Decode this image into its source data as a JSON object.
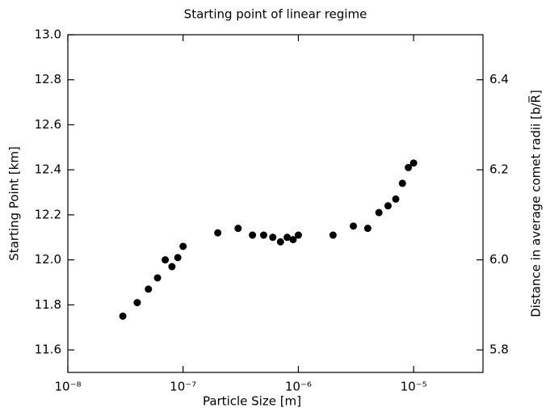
{
  "chart_data": {
    "type": "scatter",
    "title": "Starting point of linear regime",
    "x_label": "Particle Size [m]",
    "y_label": "Starting Point [km]",
    "y2_label": "Distance in average comet radii [b/R̅]",
    "xscale": "log",
    "color": "#000000",
    "x": [
      3e-08,
      4e-08,
      5e-08,
      6e-08,
      7e-08,
      8e-08,
      9e-08,
      1e-07,
      2e-07,
      3e-07,
      4e-07,
      5e-07,
      6e-07,
      7e-07,
      8e-07,
      9e-07,
      1e-06,
      2e-06,
      3e-06,
      4e-06,
      5e-06,
      6e-06,
      7e-06,
      8e-06,
      9e-06,
      1e-05
    ],
    "values": [
      11.75,
      11.81,
      11.87,
      11.92,
      12.0,
      11.97,
      12.01,
      12.06,
      12.12,
      12.14,
      12.11,
      12.11,
      12.1,
      12.08,
      12.1,
      12.09,
      12.11,
      12.11,
      12.15,
      12.14,
      12.21,
      12.24,
      12.27,
      12.34,
      12.41,
      12.43
    ],
    "xlim": [
      1e-08,
      4e-05
    ],
    "xticks": [
      {
        "value": 1e-08,
        "label": "10⁻⁸"
      },
      {
        "value": 1e-07,
        "label": "10⁻⁷"
      },
      {
        "value": 1e-06,
        "label": "10⁻⁶"
      },
      {
        "value": 1e-05,
        "label": "10⁻⁵"
      }
    ],
    "ylim": [
      11.5,
      13
    ],
    "yticks": [
      11.6,
      11.8,
      {
        "value": 12,
        "label": "12.0"
      },
      12.2,
      12.4,
      12.6,
      12.8,
      {
        "value": 13,
        "label": "13.0"
      }
    ],
    "y2lim": [
      5.75,
      6.5
    ],
    "y2ticks": [
      5.8,
      {
        "value": 6,
        "label": "6.0"
      },
      6.2,
      6.4
    ]
  }
}
